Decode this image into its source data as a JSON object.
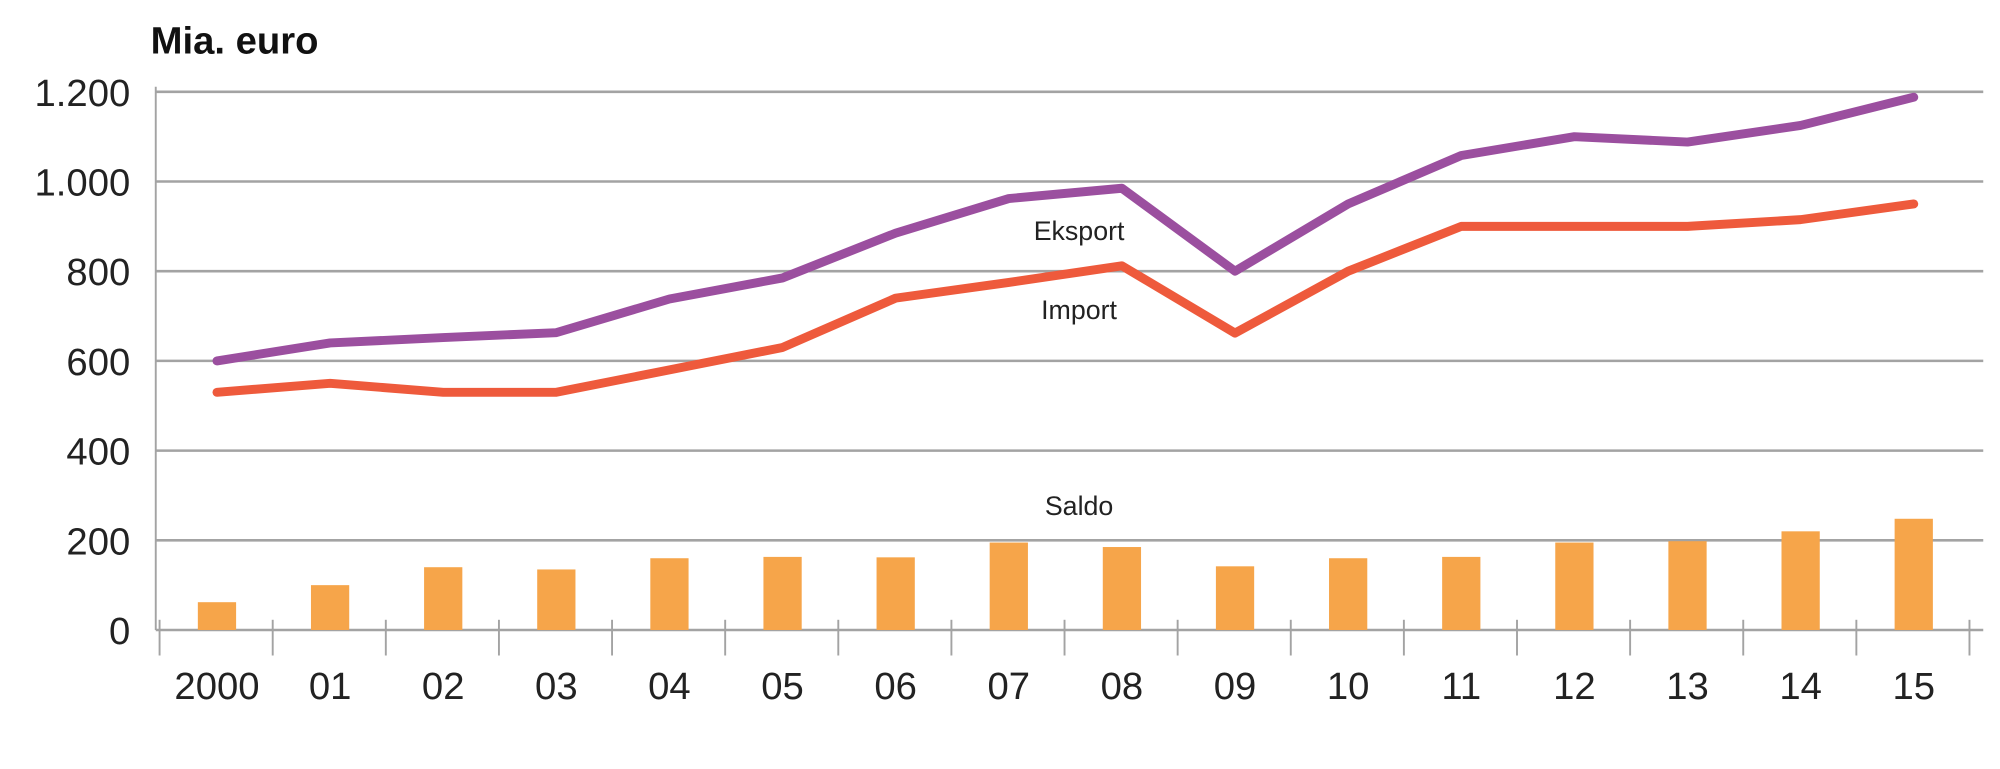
{
  "chart_data": {
    "type": "bar+line",
    "title": "Mia. euro",
    "xlabel": "",
    "ylabel": "",
    "categories": [
      "2000",
      "01",
      "02",
      "03",
      "04",
      "05",
      "06",
      "07",
      "08",
      "09",
      "10",
      "11",
      "12",
      "13",
      "14",
      "15"
    ],
    "ylim": [
      0,
      1200
    ],
    "yticks": [
      0,
      200,
      400,
      600,
      800,
      1000,
      1200
    ],
    "ytick_labels": [
      "0",
      "200",
      "400",
      "600",
      "800",
      "1.000",
      "1.200"
    ],
    "grid": true,
    "series": [
      {
        "name": "Eksport",
        "type": "line",
        "color": "#9b4f9f",
        "values": [
          600,
          640,
          652,
          663,
          738,
          785,
          885,
          962,
          985,
          800,
          950,
          1058,
          1100,
          1088,
          1125,
          1188
        ]
      },
      {
        "name": "Import",
        "type": "line",
        "color": "#ee5a3c",
        "values": [
          530,
          550,
          530,
          530,
          580,
          630,
          740,
          775,
          812,
          662,
          800,
          900,
          900,
          900,
          915,
          950
        ]
      },
      {
        "name": "Saldo",
        "type": "bar",
        "color": "#f6a54a",
        "values": [
          62,
          100,
          140,
          135,
          160,
          163,
          162,
          195,
          185,
          142,
          160,
          163,
          195,
          198,
          220,
          248
        ]
      }
    ]
  }
}
